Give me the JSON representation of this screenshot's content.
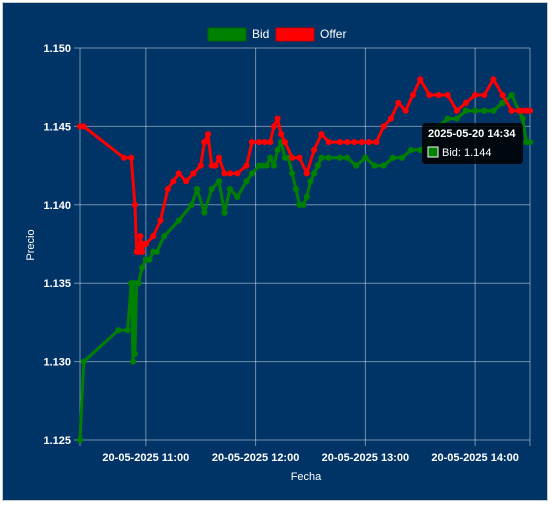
{
  "chart_data": {
    "type": "line",
    "xlabel": "Fecha",
    "ylabel": "Precio",
    "ylim": [
      1.125,
      1.15
    ],
    "y_ticks": [
      "1.125",
      "1.130",
      "1.135",
      "1.140",
      "1.145",
      "1.150"
    ],
    "x_ticks": [
      "20-05-2025 11:00",
      "20-05-2025 12:00",
      "20-05-2025 13:00",
      "20-05-2025 14:00"
    ],
    "x_tick_values": [
      "11:00",
      "12:00",
      "13:00",
      "14:00"
    ],
    "xlim": [
      "10:24",
      "14:30"
    ],
    "legend_position": "top",
    "grid": true,
    "series": [
      {
        "name": "Bid",
        "color": "#008000",
        "x": [
          "10:24",
          "10:26",
          "10:45",
          "10:50",
          "10:52",
          "10:53",
          "10:53",
          "10:54",
          "10:55",
          "10:56",
          "10:58",
          "11:00",
          "11:02",
          "11:04",
          "11:06",
          "11:10",
          "11:18",
          "11:25",
          "11:28",
          "11:32",
          "11:36",
          "11:40",
          "11:43",
          "11:46",
          "11:50",
          "11:55",
          "11:58",
          "12:02",
          "12:04",
          "12:06",
          "12:08",
          "12:10",
          "12:12",
          "12:14",
          "12:16",
          "12:18",
          "12:20",
          "12:22",
          "12:24",
          "12:26",
          "12:28",
          "12:30",
          "12:32",
          "12:34",
          "12:36",
          "12:40",
          "12:46",
          "12:50",
          "12:55",
          "13:00",
          "13:05",
          "13:10",
          "13:15",
          "13:20",
          "13:25",
          "13:30",
          "13:35",
          "13:40",
          "13:45",
          "13:50",
          "13:55",
          "14:00",
          "14:05",
          "14:10",
          "14:15",
          "14:20",
          "14:24",
          "14:26",
          "14:28",
          "14:30"
        ],
        "values": [
          1.125,
          1.13,
          1.132,
          1.132,
          1.135,
          1.13,
          1.135,
          1.1305,
          1.135,
          1.135,
          1.136,
          1.1365,
          1.1365,
          1.137,
          1.137,
          1.138,
          1.139,
          1.14,
          1.141,
          1.1395,
          1.141,
          1.1415,
          1.1395,
          1.141,
          1.1405,
          1.1415,
          1.142,
          1.1425,
          1.1425,
          1.1425,
          1.143,
          1.1425,
          1.1435,
          1.144,
          1.143,
          1.143,
          1.142,
          1.141,
          1.14,
          1.14,
          1.1405,
          1.1415,
          1.142,
          1.1425,
          1.143,
          1.143,
          1.143,
          1.143,
          1.1425,
          1.143,
          1.1425,
          1.1425,
          1.143,
          1.143,
          1.1435,
          1.1435,
          1.144,
          1.145,
          1.1455,
          1.1455,
          1.146,
          1.146,
          1.146,
          1.146,
          1.1465,
          1.147,
          1.146,
          1.1455,
          1.144,
          1.144
        ]
      },
      {
        "name": "Offer",
        "color": "#ff0000",
        "x": [
          "10:24",
          "10:26",
          "10:48",
          "10:52",
          "10:54",
          "10:55",
          "10:56",
          "10:57",
          "10:58",
          "10:59",
          "11:00",
          "11:04",
          "11:08",
          "11:12",
          "11:15",
          "11:18",
          "11:22",
          "11:26",
          "11:30",
          "11:32",
          "11:34",
          "11:36",
          "11:38",
          "11:40",
          "11:43",
          "11:46",
          "11:50",
          "11:55",
          "11:58",
          "12:02",
          "12:05",
          "12:08",
          "12:10",
          "12:12",
          "12:14",
          "12:16",
          "12:20",
          "12:24",
          "12:28",
          "12:32",
          "12:36",
          "12:40",
          "12:46",
          "12:50",
          "12:54",
          "12:58",
          "13:02",
          "13:06",
          "13:10",
          "13:14",
          "13:18",
          "13:22",
          "13:26",
          "13:30",
          "13:35",
          "13:40",
          "13:45",
          "13:50",
          "13:55",
          "14:00",
          "14:05",
          "14:10",
          "14:15",
          "14:20",
          "14:24",
          "14:26",
          "14:28",
          "14:30"
        ],
        "values": [
          1.145,
          1.145,
          1.143,
          1.143,
          1.14,
          1.137,
          1.137,
          1.138,
          1.137,
          1.1375,
          1.1375,
          1.138,
          1.139,
          1.141,
          1.1415,
          1.142,
          1.1415,
          1.142,
          1.1425,
          1.144,
          1.1445,
          1.1425,
          1.1425,
          1.143,
          1.142,
          1.142,
          1.142,
          1.1425,
          1.144,
          1.144,
          1.144,
          1.144,
          1.145,
          1.1455,
          1.1445,
          1.144,
          1.143,
          1.143,
          1.142,
          1.1435,
          1.1445,
          1.144,
          1.144,
          1.144,
          1.144,
          1.144,
          1.144,
          1.144,
          1.145,
          1.1455,
          1.1465,
          1.146,
          1.147,
          1.148,
          1.147,
          1.147,
          1.147,
          1.146,
          1.1465,
          1.147,
          1.147,
          1.148,
          1.147,
          1.146,
          1.146,
          1.146,
          1.146,
          1.146
        ]
      }
    ],
    "tooltip": {
      "title": "2025-05-20 14:34",
      "label": "Bid: 1.144"
    }
  }
}
